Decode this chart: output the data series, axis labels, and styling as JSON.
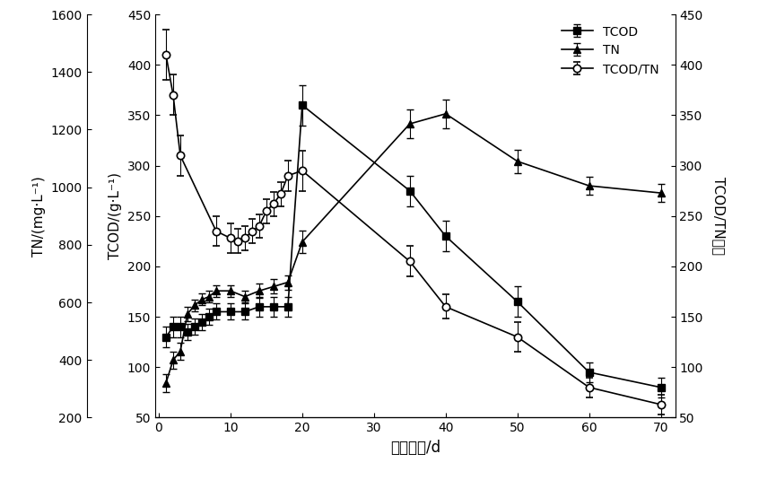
{
  "x_TCOD": [
    1,
    2,
    3,
    4,
    5,
    6,
    7,
    8,
    10,
    12,
    14,
    16,
    18,
    20,
    35,
    40,
    50,
    60,
    70
  ],
  "TCOD": [
    130,
    140,
    140,
    135,
    140,
    145,
    150,
    155,
    155,
    155,
    160,
    160,
    160,
    360,
    275,
    230,
    165,
    95,
    80
  ],
  "TCOD_err": [
    10,
    10,
    10,
    8,
    8,
    8,
    8,
    8,
    8,
    8,
    10,
    10,
    10,
    20,
    15,
    15,
    15,
    10,
    10
  ],
  "x_TN": [
    1,
    2,
    3,
    4,
    5,
    6,
    7,
    8,
    10,
    12,
    14,
    16,
    18,
    20,
    35,
    40,
    50,
    60,
    70
  ],
  "TN": [
    320,
    400,
    430,
    560,
    590,
    610,
    620,
    640,
    640,
    620,
    640,
    655,
    670,
    810,
    1220,
    1255,
    1090,
    1005,
    980
  ],
  "TN_err": [
    30,
    30,
    30,
    25,
    20,
    20,
    20,
    20,
    20,
    20,
    25,
    25,
    25,
    40,
    50,
    50,
    40,
    30,
    30
  ],
  "x_ratio": [
    1,
    2,
    3,
    8,
    10,
    11,
    12,
    13,
    14,
    15,
    16,
    17,
    18,
    20,
    35,
    40,
    50,
    60,
    70
  ],
  "ratio": [
    410,
    370,
    310,
    235,
    228,
    225,
    228,
    235,
    240,
    255,
    262,
    272,
    290,
    295,
    205,
    160,
    130,
    80,
    63
  ],
  "ratio_err": [
    25,
    20,
    20,
    15,
    15,
    12,
    12,
    12,
    12,
    12,
    12,
    12,
    15,
    20,
    15,
    12,
    15,
    10,
    10
  ],
  "TCOD_ylim": [
    50,
    450
  ],
  "TCOD_yticks": [
    50,
    100,
    150,
    200,
    250,
    300,
    350,
    400,
    450
  ],
  "TN_ylim": [
    200,
    1600
  ],
  "TN_yticks": [
    200,
    400,
    600,
    800,
    1000,
    1200,
    1400,
    1600
  ],
  "ratio_ylim": [
    50,
    450
  ],
  "ratio_yticks": [
    50,
    100,
    150,
    200,
    250,
    300,
    350,
    400,
    450
  ],
  "xlim": [
    -0.5,
    72
  ],
  "xticks": [
    0,
    10,
    20,
    30,
    40,
    50,
    60,
    70
  ],
  "xlabel": "堆肥时间/d",
  "ylabel_TCOD": "TCOD/(g·L⁻¹)",
  "ylabel_TN": "TN/(mg·L⁻¹)",
  "ylabel_ratio": "TCOD/TN比例",
  "legend_labels": [
    "TCOD",
    "TN",
    "TCOD/TN"
  ],
  "markersize": 6,
  "linewidth": 1.2,
  "capsize": 3,
  "elinewidth": 0.8
}
